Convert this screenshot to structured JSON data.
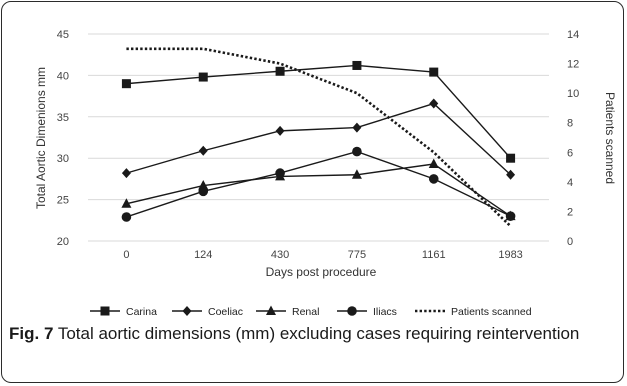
{
  "chart_data": {
    "type": "line",
    "categories": [
      "0",
      "124",
      "430",
      "775",
      "1161",
      "1983"
    ],
    "xlabel": "Days post procedure",
    "ylabel": "Total Aortic Dimenions mm",
    "y2label": "Patients scanned",
    "ylim": [
      20,
      45
    ],
    "yticks": [
      20,
      25,
      30,
      35,
      40,
      45
    ],
    "y2lim": [
      0,
      14
    ],
    "y2ticks": [
      0,
      2,
      4,
      6,
      8,
      10,
      12,
      14
    ],
    "grid": true,
    "legend_position": "bottom",
    "series": [
      {
        "name": "Carina",
        "axis": "left",
        "marker": "square",
        "values": [
          39.0,
          39.8,
          40.5,
          41.2,
          40.4,
          30.0
        ]
      },
      {
        "name": "Coeliac",
        "axis": "left",
        "marker": "diamond",
        "values": [
          28.2,
          30.9,
          33.3,
          33.7,
          36.6,
          28.0
        ]
      },
      {
        "name": "Renal",
        "axis": "left",
        "marker": "triangle",
        "values": [
          24.5,
          26.7,
          27.8,
          28.0,
          29.3,
          23.0
        ]
      },
      {
        "name": "Iliacs",
        "axis": "left",
        "marker": "circle",
        "values": [
          22.9,
          26.0,
          28.2,
          30.8,
          27.5,
          23.0
        ]
      },
      {
        "name": "Patients scanned",
        "axis": "right",
        "marker": "none",
        "dashed": true,
        "values": [
          13,
          13,
          12,
          10,
          6,
          1
        ]
      }
    ]
  },
  "caption": {
    "label": "Fig. 7",
    "text": " Total aortic dimensions (mm) excluding cases requiring reintervention"
  }
}
